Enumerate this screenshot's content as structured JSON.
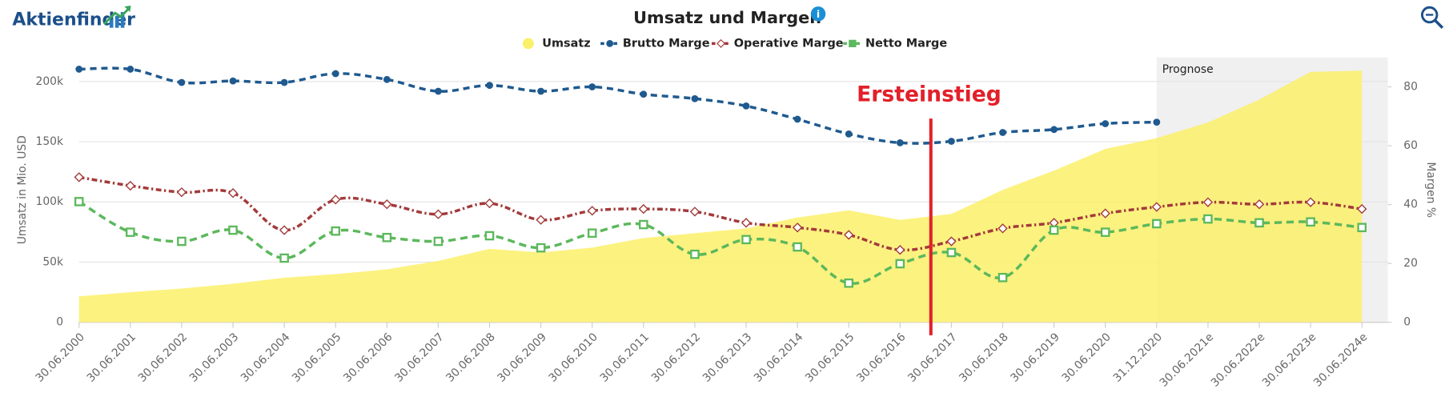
{
  "brand": "Aktienfinder",
  "chart_data": {
    "type": "combo",
    "title": "Umsatz und Margen",
    "y_label": "Umsatz in Mio. USD",
    "y2_label": "Margen %",
    "forecast_label": "Prognose",
    "annotation": "Ersteinstieg",
    "categories": [
      "30.06.2000",
      "30.06.2001",
      "30.06.2002",
      "30.06.2003",
      "30.06.2004",
      "30.06.2005",
      "30.06.2006",
      "30.06.2007",
      "30.06.2008",
      "30.06.2009",
      "30.06.2010",
      "30.06.2011",
      "30.06.2012",
      "30.06.2013",
      "30.06.2014",
      "30.06.2015",
      "30.06.2016",
      "30.06.2017",
      "30.06.2018",
      "30.06.2019",
      "30.06.2020",
      "31.12.2020",
      "30.06.2021e",
      "30.06.2022e",
      "30.06.2023e",
      "30.06.2024e"
    ],
    "ylim": [
      0,
      220000
    ],
    "yticks": [
      0,
      {
        "value": 50000,
        "label": "50k"
      },
      {
        "value": 100000,
        "label": "100k"
      },
      {
        "value": 150000,
        "label": "150k"
      },
      {
        "value": 200000,
        "label": "200k"
      }
    ],
    "y2lim": [
      0,
      90
    ],
    "y2ticks": [
      0,
      20,
      40,
      60,
      80
    ],
    "grid": true,
    "series": [
      {
        "name": "Umsatz",
        "kind": "area",
        "color": "#fbf06a",
        "axis": "y",
        "values": [
          21500,
          25000,
          28000,
          32000,
          37000,
          40000,
          44000,
          51000,
          61000,
          58000,
          62000,
          70000,
          74000,
          78000,
          87000,
          93000,
          85000,
          90000,
          110000,
          126000,
          144000,
          153000,
          166000,
          185000,
          208000,
          209000
        ]
      },
      {
        "name": "Brutto Marge",
        "kind": "line",
        "color": "#1f5a8f",
        "axis": "y2",
        "values": [
          86,
          86,
          81.5,
          82,
          81.5,
          84.5,
          82.5,
          78.5,
          80.5,
          78.5,
          80,
          77.5,
          76,
          73.5,
          69,
          64,
          61,
          61.5,
          64.5,
          65.5,
          67.5,
          68,
          null,
          null,
          null,
          null
        ]
      },
      {
        "name": "Operative Marge",
        "kind": "line",
        "color": "#a33a3a",
        "axis": "y2",
        "values": [
          49.3,
          46.4,
          44.2,
          43.9,
          31.3,
          41.7,
          40.1,
          36.7,
          40.4,
          34.8,
          37.9,
          38.5,
          37.6,
          33.8,
          32.2,
          29.7,
          24.6,
          27.5,
          31.9,
          33.8,
          37,
          39.2,
          40.8,
          40.1,
          40.8,
          38.5
        ]
      },
      {
        "name": "Netto Marge",
        "kind": "line",
        "color": "#5cb85c",
        "axis": "y2",
        "values": [
          41,
          30.6,
          27.5,
          31.3,
          21.8,
          31,
          28.8,
          27.5,
          29.4,
          25.3,
          30.3,
          33.2,
          23.1,
          28.1,
          25.6,
          13.3,
          19.9,
          23.7,
          15.2,
          31.3,
          30.6,
          33.5,
          35.1,
          33.8,
          34.1,
          32.2
        ]
      }
    ]
  }
}
